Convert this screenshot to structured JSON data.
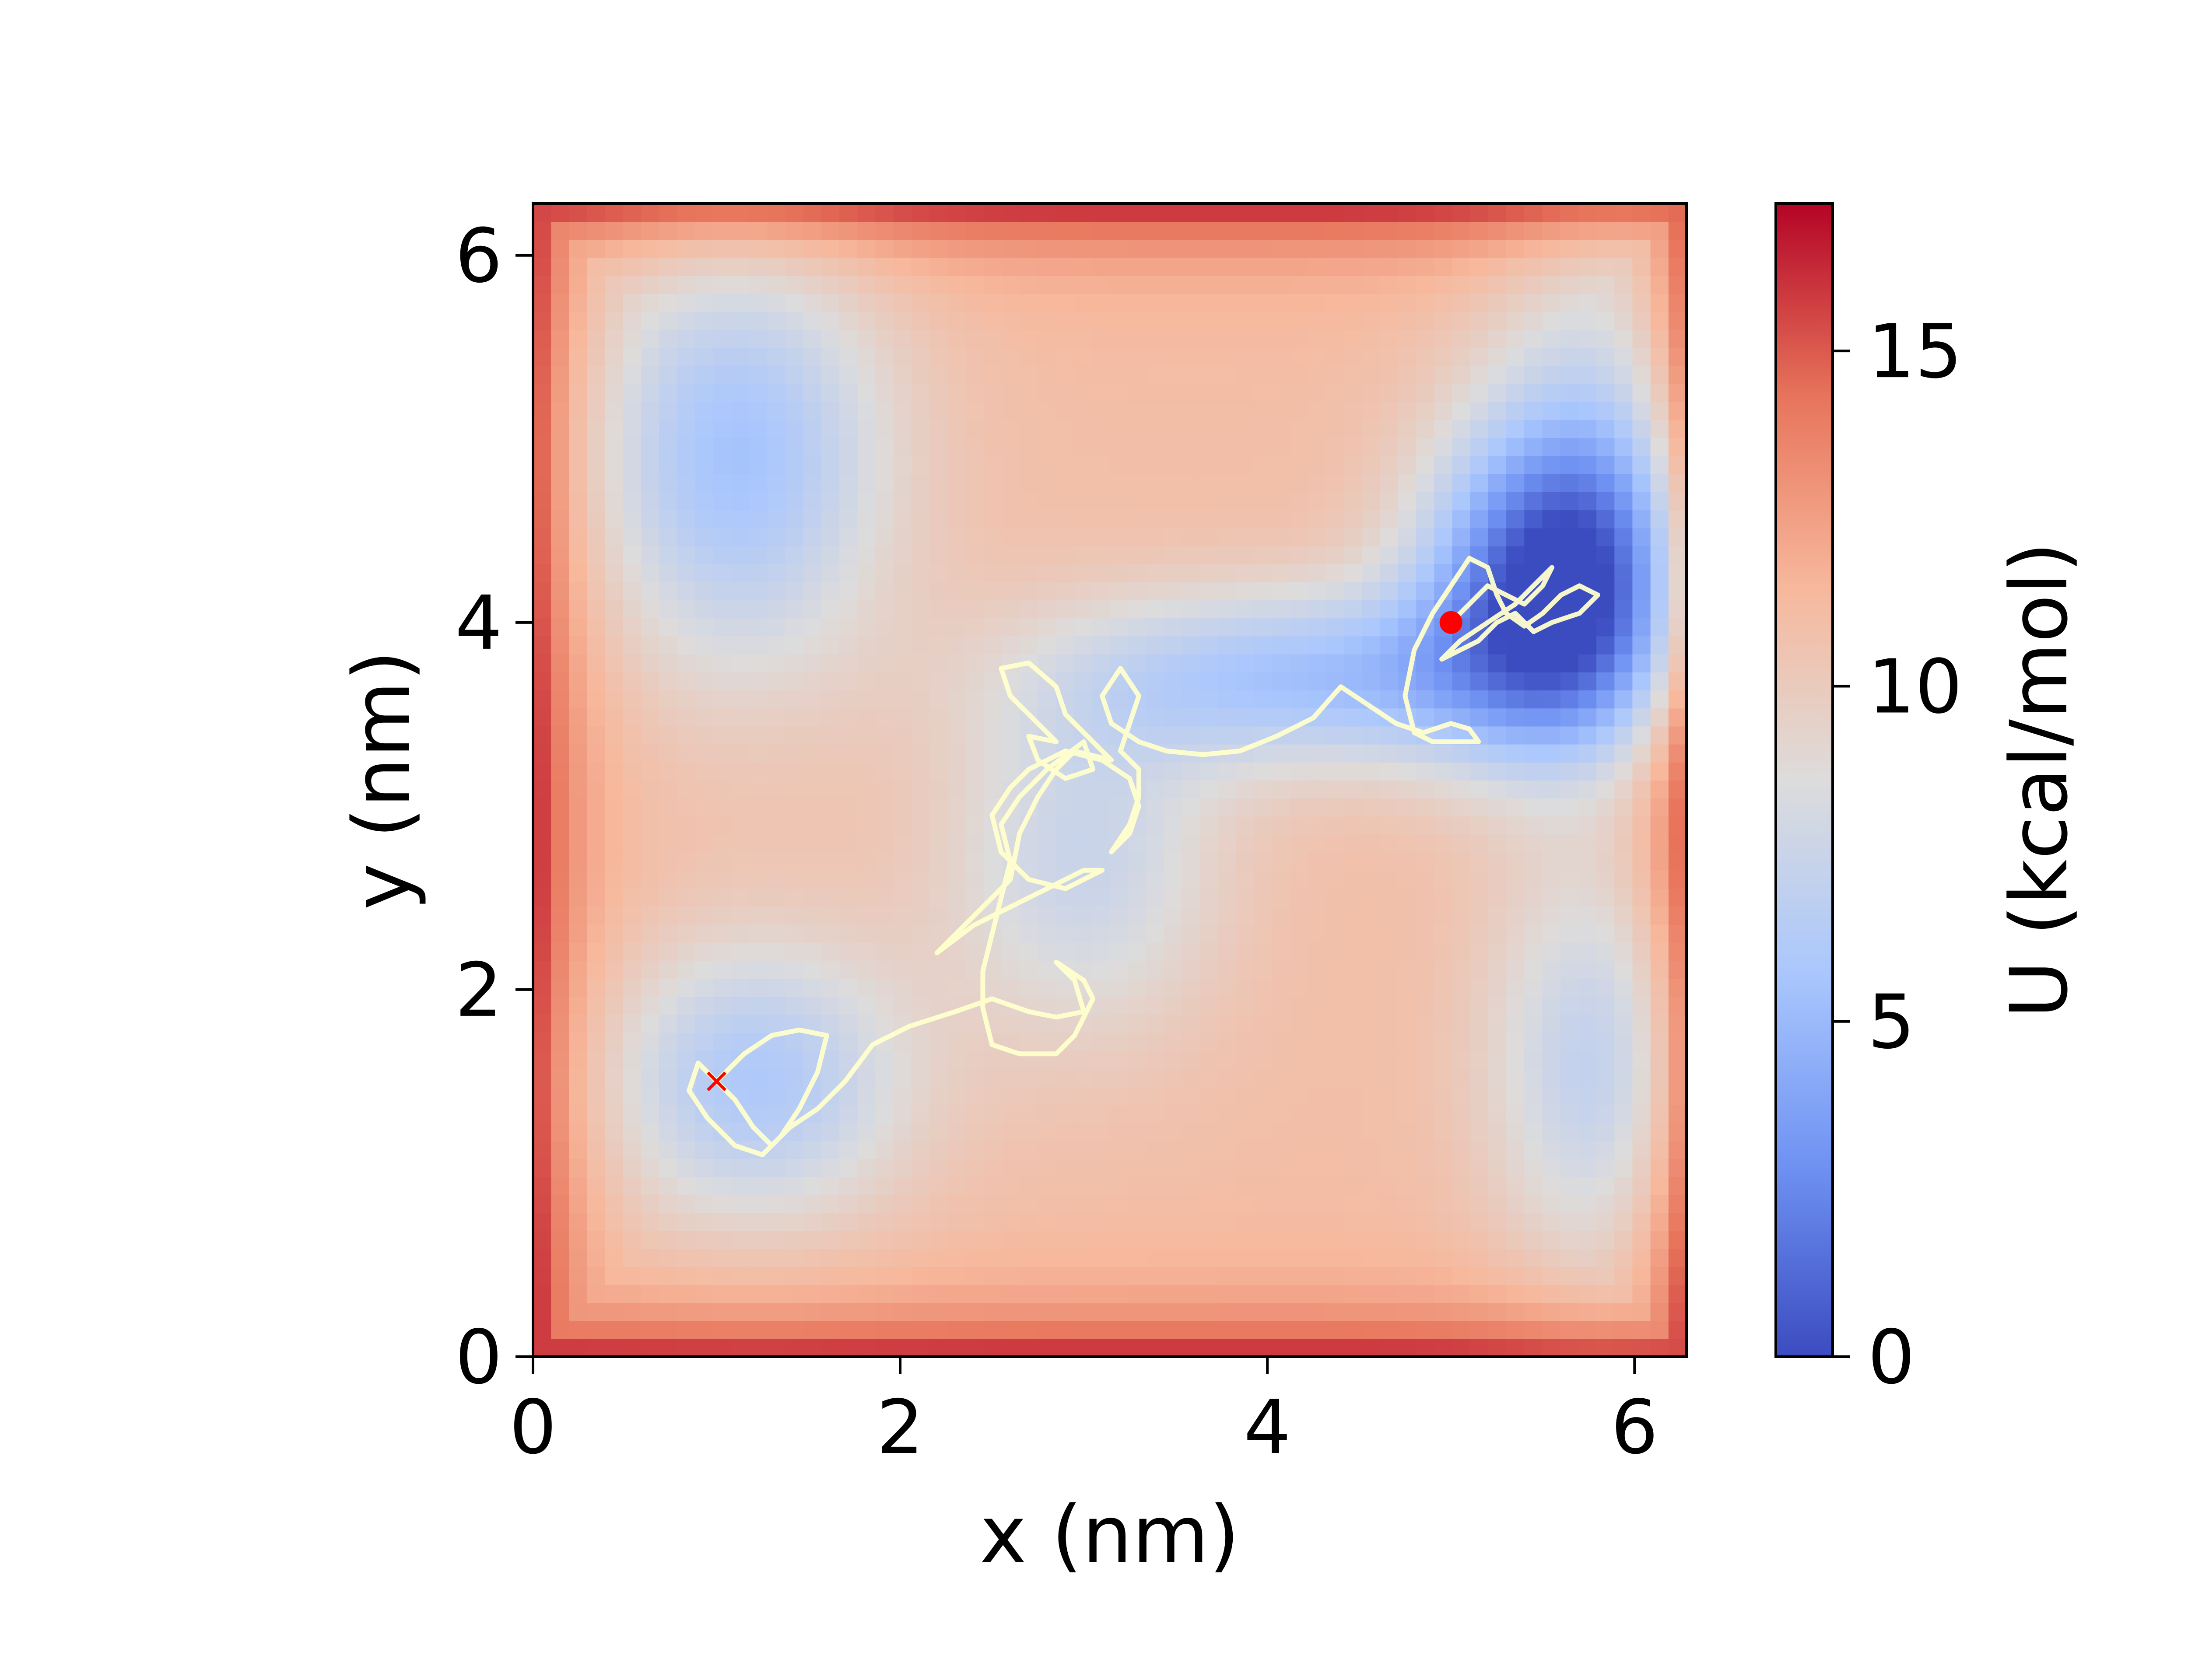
{
  "chart_data": {
    "type": "heatmap",
    "xlabel": "x (nm)",
    "ylabel": "y (nm)",
    "xlim": [
      0,
      6.283
    ],
    "ylim": [
      0,
      6.283
    ],
    "x_ticks": [
      0,
      2,
      4,
      6
    ],
    "y_ticks": [
      0,
      2,
      4,
      6
    ],
    "x_tick_labels": [
      "0",
      "2",
      "4",
      "6"
    ],
    "y_tick_labels": [
      "0",
      "2",
      "4",
      "6"
    ],
    "colormap": "coolwarm",
    "colormap_stops": [
      "#3b4cc0",
      "#6f92f3",
      "#aac7fd",
      "#dddcdc",
      "#f7b89c",
      "#e7745b",
      "#b40426"
    ],
    "grid": false,
    "potential_surface": {
      "description_of_values": "U (kcal/mol) over x,y in nm",
      "base": 11,
      "wells": [
        {
          "x": 5.6,
          "y": 4.2,
          "sx": 0.5,
          "sy": 0.6,
          "depth": 11
        },
        {
          "x": 4.3,
          "y": 3.7,
          "sx": 1.0,
          "sy": 0.35,
          "depth": 5.5
        },
        {
          "x": 1.1,
          "y": 4.9,
          "sx": 0.6,
          "sy": 0.85,
          "depth": 5.5
        },
        {
          "x": 1.2,
          "y": 1.5,
          "sx": 0.6,
          "sy": 0.55,
          "depth": 5
        },
        {
          "x": 5.85,
          "y": 1.6,
          "sx": 0.45,
          "sy": 0.8,
          "depth": 4.5
        },
        {
          "x": 3.0,
          "y": 2.7,
          "sx": 0.55,
          "sy": 0.7,
          "depth": 3.5
        },
        {
          "x": 5.9,
          "y": 5.2,
          "sx": 0.5,
          "sy": 0.9,
          "depth": 3.0
        }
      ],
      "wall_height": 6
    },
    "trajectory": {
      "color": "#ffffcc",
      "points": [
        [
          1.0,
          1.5
        ],
        [
          0.9,
          1.6
        ],
        [
          0.85,
          1.45
        ],
        [
          0.95,
          1.3
        ],
        [
          1.1,
          1.15
        ],
        [
          1.25,
          1.1
        ],
        [
          1.35,
          1.2
        ],
        [
          1.45,
          1.35
        ],
        [
          1.55,
          1.55
        ],
        [
          1.6,
          1.75
        ],
        [
          1.45,
          1.78
        ],
        [
          1.3,
          1.75
        ],
        [
          1.15,
          1.65
        ],
        [
          1.0,
          1.5
        ],
        [
          1.1,
          1.4
        ],
        [
          1.2,
          1.25
        ],
        [
          1.3,
          1.15
        ],
        [
          1.4,
          1.25
        ],
        [
          1.55,
          1.35
        ],
        [
          1.7,
          1.5
        ],
        [
          1.85,
          1.7
        ],
        [
          2.05,
          1.8
        ],
        [
          2.3,
          1.88
        ],
        [
          2.5,
          1.95
        ],
        [
          2.7,
          1.88
        ],
        [
          2.85,
          1.85
        ],
        [
          3.0,
          1.88
        ],
        [
          2.95,
          2.05
        ],
        [
          2.85,
          2.15
        ],
        [
          3.0,
          2.05
        ],
        [
          3.05,
          1.95
        ],
        [
          2.95,
          1.75
        ],
        [
          2.85,
          1.65
        ],
        [
          2.65,
          1.65
        ],
        [
          2.5,
          1.7
        ],
        [
          2.45,
          1.9
        ],
        [
          2.45,
          2.1
        ],
        [
          2.5,
          2.3
        ],
        [
          2.55,
          2.5
        ],
        [
          2.6,
          2.7
        ],
        [
          2.55,
          2.9
        ],
        [
          2.65,
          3.05
        ],
        [
          2.8,
          3.2
        ],
        [
          3.0,
          3.35
        ],
        [
          3.05,
          3.2
        ],
        [
          2.9,
          3.15
        ],
        [
          2.75,
          3.25
        ],
        [
          2.7,
          3.38
        ],
        [
          2.85,
          3.35
        ],
        [
          2.7,
          3.5
        ],
        [
          2.6,
          3.6
        ],
        [
          2.55,
          3.75
        ],
        [
          2.7,
          3.78
        ],
        [
          2.85,
          3.65
        ],
        [
          2.9,
          3.5
        ],
        [
          3.05,
          3.35
        ],
        [
          3.15,
          3.25
        ],
        [
          2.95,
          3.3
        ],
        [
          2.85,
          3.2
        ],
        [
          2.75,
          3.05
        ],
        [
          2.65,
          2.85
        ],
        [
          2.6,
          2.6
        ],
        [
          2.45,
          2.45
        ],
        [
          2.3,
          2.3
        ],
        [
          2.2,
          2.2
        ],
        [
          2.4,
          2.35
        ],
        [
          2.6,
          2.45
        ],
        [
          2.8,
          2.55
        ],
        [
          3.0,
          2.65
        ],
        [
          3.1,
          2.65
        ],
        [
          2.9,
          2.55
        ],
        [
          2.7,
          2.6
        ],
        [
          2.55,
          2.75
        ],
        [
          2.5,
          2.95
        ],
        [
          2.6,
          3.1
        ],
        [
          2.7,
          3.2
        ],
        [
          2.9,
          3.3
        ],
        [
          3.1,
          3.25
        ],
        [
          3.25,
          3.15
        ],
        [
          3.3,
          3.0
        ],
        [
          3.25,
          2.85
        ],
        [
          3.15,
          2.75
        ],
        [
          3.25,
          2.9
        ],
        [
          3.3,
          3.05
        ],
        [
          3.3,
          3.2
        ],
        [
          3.2,
          3.3
        ],
        [
          3.25,
          3.45
        ],
        [
          3.3,
          3.6
        ],
        [
          3.2,
          3.75
        ],
        [
          3.1,
          3.6
        ],
        [
          3.15,
          3.45
        ],
        [
          3.3,
          3.35
        ],
        [
          3.45,
          3.3
        ],
        [
          3.65,
          3.28
        ],
        [
          3.85,
          3.3
        ],
        [
          4.05,
          3.38
        ],
        [
          4.25,
          3.48
        ],
        [
          4.4,
          3.65
        ],
        [
          4.55,
          3.55
        ],
        [
          4.7,
          3.45
        ],
        [
          4.85,
          3.4
        ],
        [
          5.0,
          3.45
        ],
        [
          5.1,
          3.42
        ],
        [
          5.15,
          3.35
        ],
        [
          4.9,
          3.35
        ],
        [
          4.8,
          3.4
        ],
        [
          4.75,
          3.6
        ],
        [
          4.8,
          3.85
        ],
        [
          4.9,
          4.05
        ],
        [
          5.0,
          4.2
        ],
        [
          5.1,
          4.35
        ],
        [
          5.2,
          4.3
        ],
        [
          5.25,
          4.15
        ],
        [
          5.3,
          4.05
        ],
        [
          5.4,
          3.98
        ],
        [
          5.5,
          4.05
        ],
        [
          5.6,
          4.15
        ],
        [
          5.7,
          4.2
        ],
        [
          5.8,
          4.15
        ],
        [
          5.7,
          4.05
        ],
        [
          5.55,
          4.0
        ],
        [
          5.45,
          3.95
        ],
        [
          5.35,
          4.05
        ],
        [
          5.25,
          4.0
        ],
        [
          5.15,
          3.9
        ],
        [
          5.05,
          3.85
        ],
        [
          4.95,
          3.8
        ],
        [
          5.05,
          3.9
        ],
        [
          5.2,
          4.0
        ],
        [
          5.35,
          4.1
        ],
        [
          5.45,
          4.2
        ],
        [
          5.55,
          4.3
        ],
        [
          5.5,
          4.2
        ],
        [
          5.4,
          4.1
        ],
        [
          5.3,
          4.15
        ],
        [
          5.2,
          4.2
        ],
        [
          5.1,
          4.1
        ],
        [
          5.0,
          4.0
        ]
      ]
    },
    "start_marker": {
      "shape": "x",
      "color": "#ff0000",
      "x": 1.0,
      "y": 1.5
    },
    "end_marker": {
      "shape": "circle",
      "color": "#ff0000",
      "x": 5.0,
      "y": 4.0
    },
    "colorbar": {
      "label": "U (kcal/mol)",
      "min": 0,
      "max": 17.2,
      "ticks": [
        0,
        5,
        10,
        15
      ],
      "tick_labels": [
        "0",
        "5",
        "10",
        "15"
      ]
    }
  }
}
